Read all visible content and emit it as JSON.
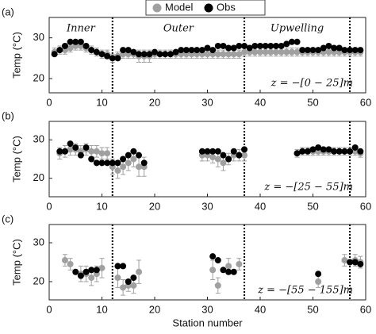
{
  "chart_data": [
    {
      "type": "scatter",
      "label": "(a)",
      "annotation": "z = −[0 − 25]m",
      "ylabel": "Temp (°C)",
      "regions": [
        "Inner",
        "Outer",
        "Upwelling"
      ],
      "region_x": [
        6,
        24.5,
        47
      ],
      "dividers": [
        12,
        37,
        57
      ],
      "xlim": [
        0,
        60
      ],
      "xticks": [
        0,
        10,
        20,
        30,
        40,
        50,
        60
      ],
      "ylim": [
        16.5,
        35
      ],
      "yticks": [
        20,
        30
      ],
      "series": [
        {
          "name": "Model",
          "color": "#a0a0a0",
          "x": [
            1,
            2,
            3,
            4,
            5,
            6,
            7,
            8,
            9,
            10,
            11,
            12,
            13,
            14,
            15,
            16,
            17,
            18,
            19,
            20,
            21,
            22,
            23,
            24,
            25,
            26,
            27,
            28,
            29,
            30,
            31,
            32,
            33,
            34,
            35,
            36,
            37,
            38,
            39,
            40,
            41,
            42,
            43,
            44,
            45,
            46,
            47,
            48,
            49,
            50,
            51,
            52,
            53,
            54,
            55,
            56,
            57,
            58,
            59
          ],
          "values": [
            26.5,
            27,
            27,
            27.5,
            28,
            28,
            27.5,
            27,
            26.5,
            26,
            26,
            25,
            25.5,
            26,
            26,
            26,
            25.5,
            25.5,
            25.5,
            26,
            26,
            26,
            26,
            26,
            26,
            26,
            26,
            26,
            26,
            26,
            26,
            26,
            26,
            26,
            26,
            26,
            26.5,
            26.5,
            26.5,
            26.5,
            26.5,
            26.5,
            26.5,
            26.5,
            26.5,
            26.5,
            26.5,
            26.5,
            26.5,
            26.5,
            26.5,
            26.5,
            26.5,
            26.5,
            26.5,
            26.5,
            26.5,
            26.5,
            26.5
          ],
          "errors": [
            1,
            1,
            1,
            1,
            1,
            1,
            1,
            1,
            1,
            1,
            1,
            1,
            1,
            1,
            1,
            1,
            1.5,
            1.5,
            1.5,
            1,
            1,
            1,
            1,
            1,
            1,
            1,
            1,
            1,
            1,
            1,
            1,
            1,
            1,
            1,
            1,
            1,
            1,
            1,
            1,
            1,
            1,
            1,
            1,
            1,
            1,
            1,
            1,
            1,
            1,
            1,
            1,
            1,
            1,
            1,
            1,
            1,
            1,
            1,
            1
          ]
        },
        {
          "name": "Obs",
          "color": "#000000",
          "x": [
            1,
            2,
            3,
            4,
            5,
            6,
            7,
            8,
            9,
            10,
            11,
            12,
            13,
            14,
            15,
            16,
            17,
            18,
            19,
            20,
            21,
            22,
            23,
            24,
            25,
            26,
            27,
            28,
            29,
            30,
            31,
            32,
            33,
            34,
            35,
            36,
            37,
            38,
            39,
            40,
            41,
            42,
            43,
            44,
            45,
            46,
            47,
            48,
            49,
            50,
            51,
            52,
            53,
            54,
            55,
            56,
            57,
            58,
            59
          ],
          "values": [
            26,
            27,
            28,
            29,
            29,
            29,
            28,
            27,
            26.5,
            26,
            25.5,
            25,
            25,
            27,
            27,
            26.5,
            26,
            26,
            26,
            26.5,
            26,
            26,
            26,
            26.5,
            27,
            27,
            27,
            27,
            27,
            27.5,
            27,
            28,
            28,
            27.5,
            27.5,
            28,
            28,
            27.5,
            28,
            28,
            28,
            28,
            28,
            28,
            28.5,
            29,
            29,
            27,
            27,
            27,
            27,
            27.5,
            28,
            27.5,
            27.5,
            27,
            27,
            27,
            27
          ]
        }
      ]
    },
    {
      "type": "scatter",
      "label": "(b)",
      "annotation": "z = −[25 − 55]m",
      "ylabel": "Temp (°C)",
      "dividers": [
        12,
        37,
        57
      ],
      "xlim": [
        0,
        60
      ],
      "xticks": [
        0,
        10,
        20,
        30,
        40,
        50,
        60
      ],
      "ylim": [
        15.2,
        34.8
      ],
      "yticks": [
        20,
        30
      ],
      "series": [
        {
          "color": "#a0a0a0",
          "x": [
            2,
            3,
            4,
            5,
            6,
            7,
            8,
            9,
            10,
            11,
            12,
            13,
            14,
            15,
            16,
            17,
            18,
            29,
            30,
            31,
            32,
            33,
            34,
            35,
            36,
            37,
            47,
            48,
            49,
            50,
            51,
            52,
            53,
            54,
            55,
            56,
            57,
            58,
            59
          ],
          "values": [
            26.5,
            27,
            27.5,
            27.5,
            27,
            27.5,
            27,
            27,
            26.5,
            26.5,
            23,
            22,
            23,
            24,
            25,
            23,
            23,
            26,
            26,
            25.5,
            25,
            24,
            25,
            26,
            26,
            26,
            26.5,
            27,
            27,
            27,
            27,
            27,
            27,
            27,
            27,
            27,
            27,
            27,
            26.5
          ],
          "errors": [
            1.5,
            1.5,
            1.5,
            1.5,
            1.5,
            1.5,
            1.5,
            1.5,
            1.5,
            1.5,
            2,
            2,
            2,
            2,
            2,
            2.5,
            2.5,
            1.5,
            1.5,
            1.5,
            2,
            2,
            1.5,
            1.5,
            1.5,
            1.5,
            1,
            1,
            1,
            1,
            1,
            1,
            1,
            1,
            1,
            1,
            1,
            1,
            1
          ]
        },
        {
          "color": "#000000",
          "x": [
            2,
            3,
            4,
            5,
            6,
            7,
            8,
            9,
            10,
            11,
            12,
            13,
            14,
            15,
            16,
            17,
            18,
            29,
            30,
            31,
            32,
            33,
            34,
            35,
            36,
            37,
            47,
            48,
            49,
            50,
            51,
            52,
            53,
            54,
            55,
            56,
            57,
            58,
            59
          ],
          "values": [
            27,
            27,
            29,
            28,
            26,
            28,
            25,
            24,
            24,
            24,
            24,
            24,
            25,
            26,
            27,
            26,
            24,
            27,
            27,
            27,
            27,
            26,
            25,
            27,
            26,
            27.5,
            26.5,
            27,
            27,
            27.5,
            28,
            27.5,
            27.5,
            27,
            27,
            27,
            27,
            28,
            27
          ]
        }
      ]
    },
    {
      "type": "scatter",
      "label": "(c)",
      "annotation": "z = −[55 − 155]m",
      "ylabel": "Temp (°C)",
      "xlabel": "Station number",
      "dividers": [
        12,
        37,
        57
      ],
      "xlim": [
        0,
        60
      ],
      "xticks": [
        0,
        10,
        20,
        30,
        40,
        50,
        60
      ],
      "ylim": [
        15.3,
        34.7
      ],
      "yticks": [
        20,
        30
      ],
      "series": [
        {
          "color": "#a0a0a0",
          "x": [
            3,
            4,
            6,
            7,
            8,
            9,
            10,
            13,
            14,
            15,
            16,
            17,
            31,
            32,
            34,
            36,
            51,
            56,
            58,
            59
          ],
          "values": [
            25.5,
            24.5,
            22,
            22,
            21,
            22,
            23.5,
            21,
            18.5,
            19,
            19,
            22.5,
            23,
            19,
            24,
            24.5,
            20,
            25.5,
            25.5,
            25
          ],
          "errors": [
            1.5,
            1.5,
            2,
            2,
            2,
            2,
            2.5,
            2.5,
            2,
            1.5,
            2,
            3,
            2.5,
            2,
            2,
            1.5,
            1.5,
            1.5,
            1.5,
            1.5
          ]
        },
        {
          "color": "#000000",
          "x": [
            5,
            6,
            7,
            8,
            9,
            13,
            14,
            15,
            16,
            31,
            32,
            33,
            34,
            35,
            51,
            57,
            58,
            59
          ],
          "values": [
            22.5,
            21.5,
            22.5,
            23,
            23,
            24,
            24,
            20,
            21,
            26.5,
            25.5,
            23,
            22.5,
            22.5,
            22,
            25,
            25,
            24.5
          ]
        }
      ]
    }
  ]
}
